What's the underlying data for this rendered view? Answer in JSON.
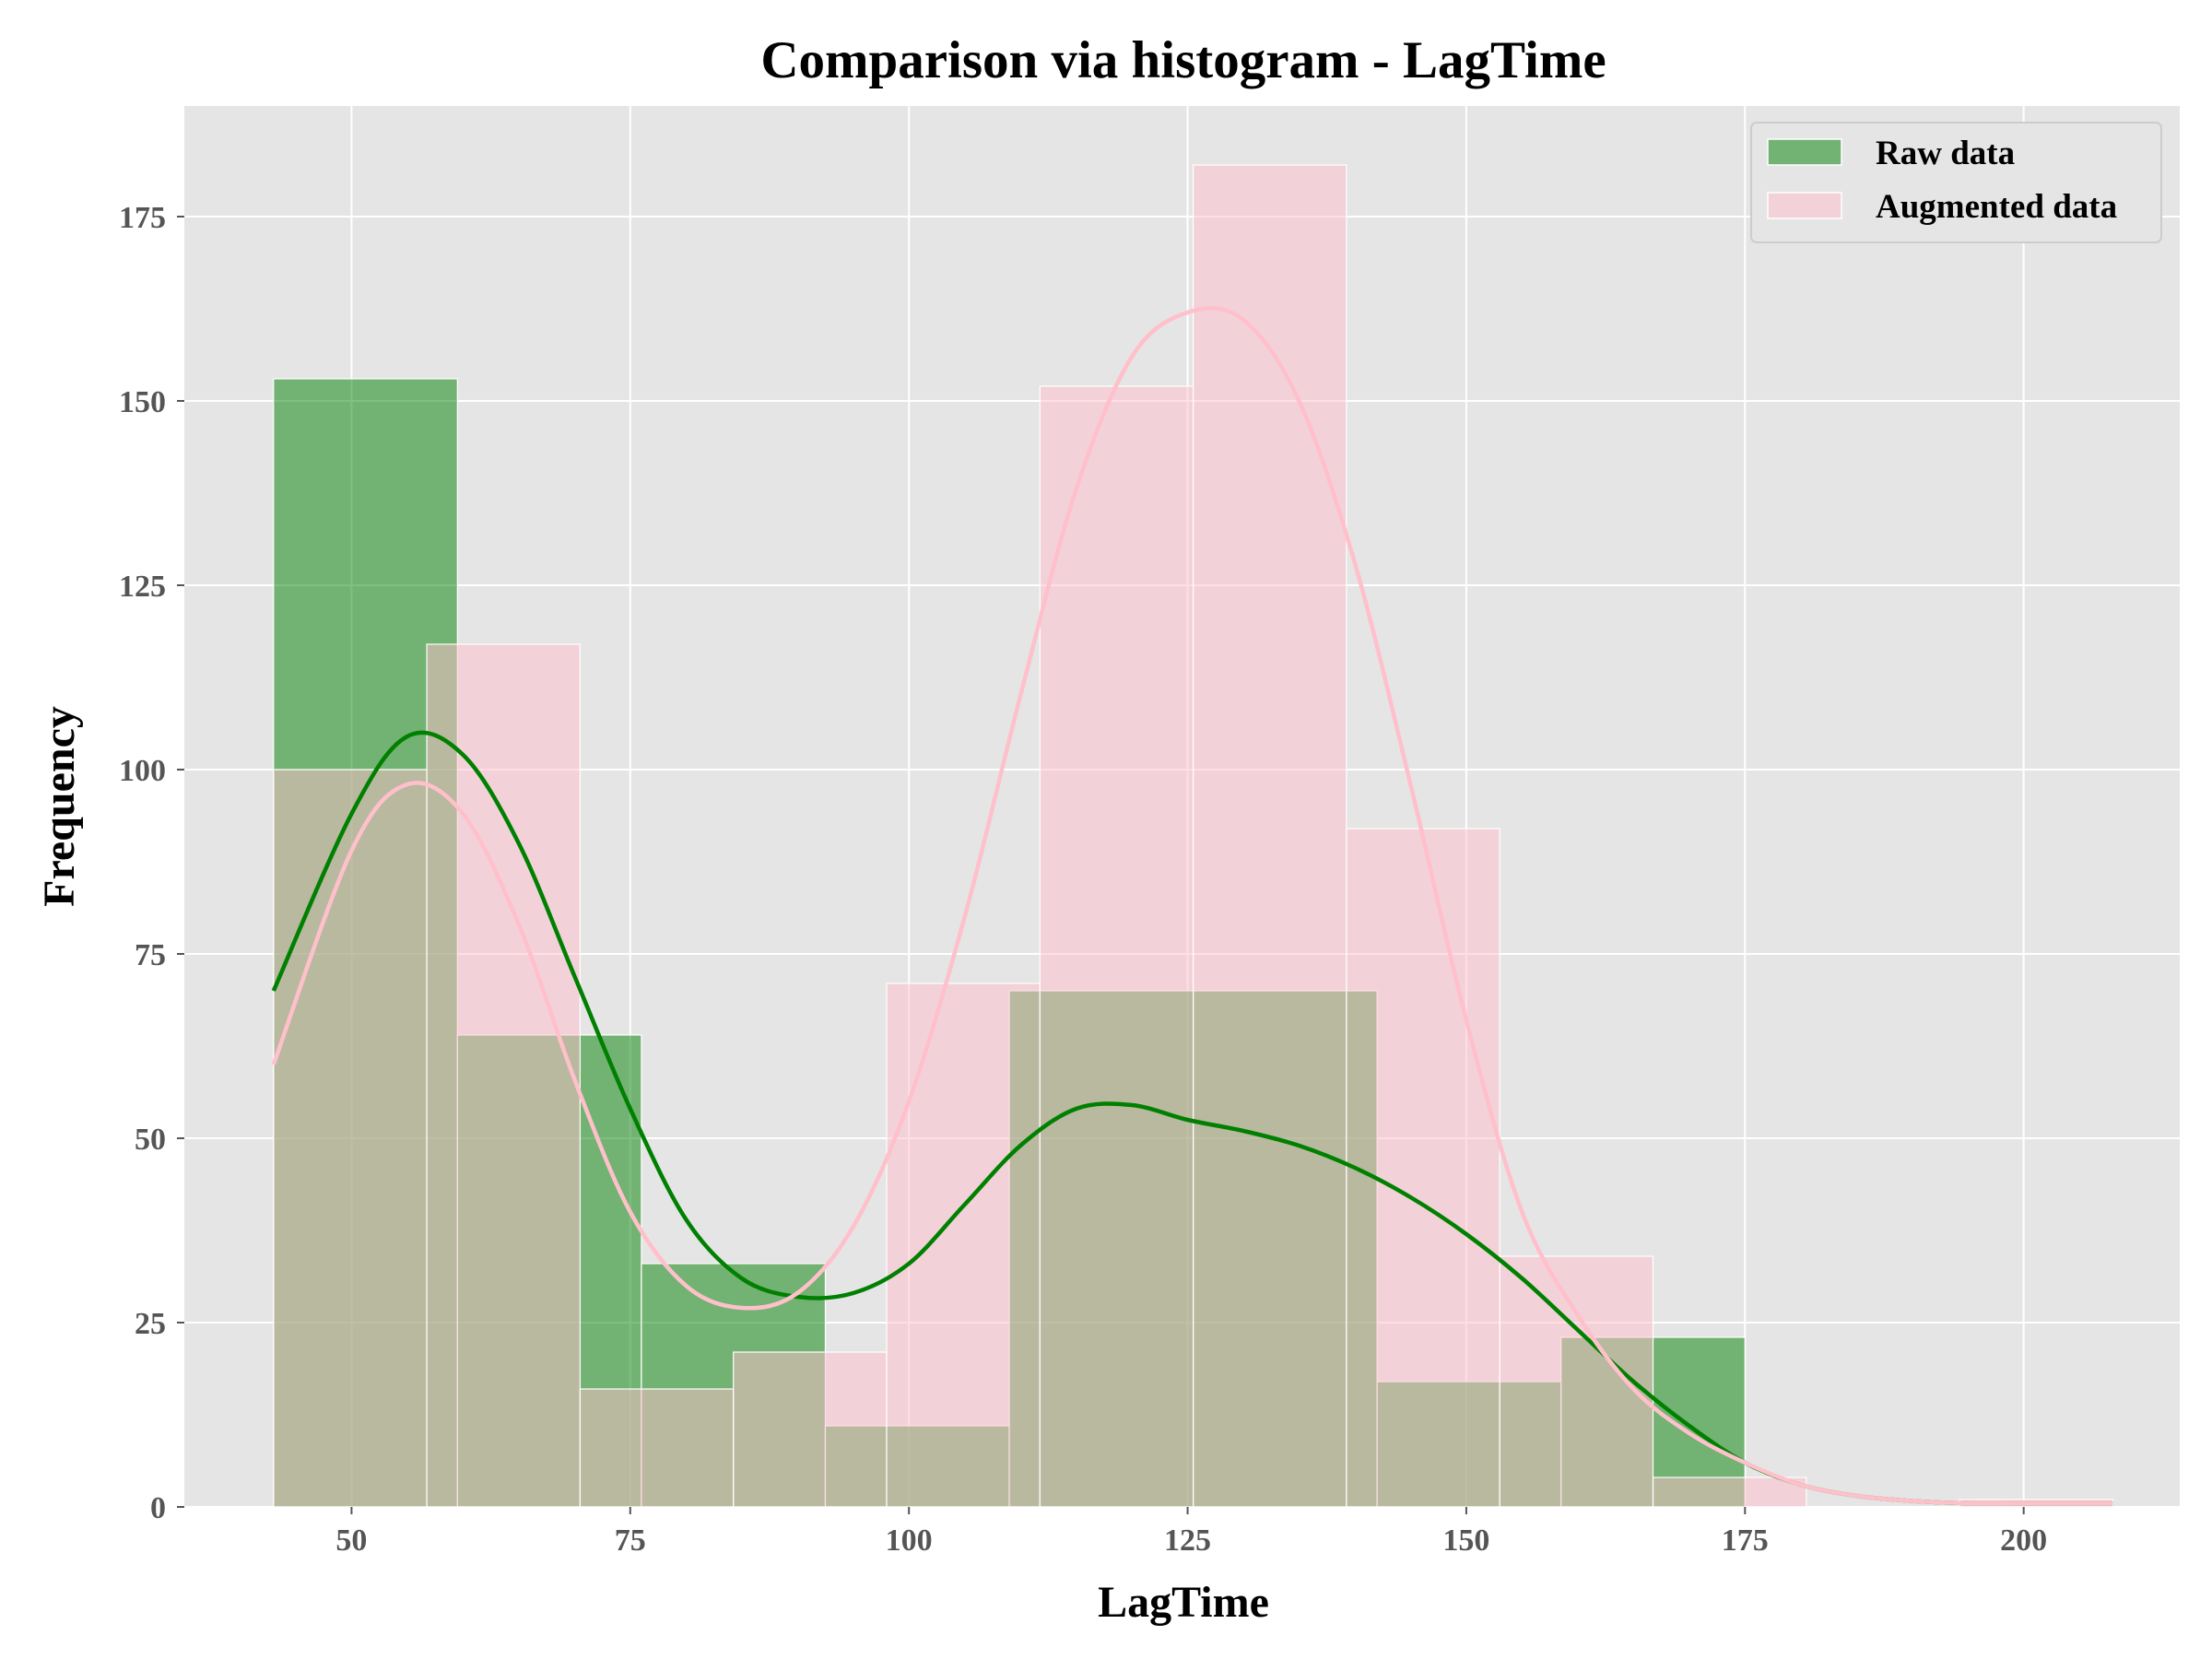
{
  "chart_data": {
    "type": "histogram",
    "title": "Comparison via histogram - LagTime",
    "xlabel": "LagTime",
    "ylabel": "Frequency",
    "xlim": [
      35,
      214
    ],
    "ylim": [
      0,
      190
    ],
    "xticks": [
      50,
      75,
      100,
      125,
      150,
      175,
      200
    ],
    "yticks": [
      0,
      25,
      50,
      75,
      100,
      125,
      150,
      175
    ],
    "grid": true,
    "legend_position": "upper right",
    "series": [
      {
        "name": "Raw data",
        "color": "#008000",
        "bins": [
          {
            "x0": 43.0,
            "x1": 59.5,
            "count": 153
          },
          {
            "x0": 59.5,
            "x1": 76.0,
            "count": 64
          },
          {
            "x0": 76.0,
            "x1": 92.5,
            "count": 33
          },
          {
            "x0": 92.5,
            "x1": 109.0,
            "count": 11
          },
          {
            "x0": 109.0,
            "x1": 125.5,
            "count": 70
          },
          {
            "x0": 125.5,
            "x1": 142.0,
            "count": 70
          },
          {
            "x0": 142.0,
            "x1": 158.5,
            "count": 17
          },
          {
            "x0": 158.5,
            "x1": 175.0,
            "count": 23
          }
        ],
        "kde": {
          "x": [
            43,
            50,
            55,
            60,
            65,
            70,
            75,
            80,
            85,
            90,
            95,
            100,
            105,
            110,
            115,
            120,
            125,
            130,
            135,
            140,
            145,
            150,
            155,
            160,
            165,
            170,
            175,
            180,
            185,
            190,
            195,
            200,
            205,
            208
          ],
          "y": [
            70,
            94,
            104.5,
            102,
            90,
            72,
            54,
            39,
            31,
            28.5,
            29,
            33,
            41,
            49,
            54,
            54.5,
            52.5,
            51,
            49,
            46,
            42,
            37,
            31,
            24,
            17,
            11,
            6,
            3,
            1.5,
            0.8,
            0.5,
            0.5,
            0.5,
            0.5
          ]
        }
      },
      {
        "name": "Augmented data",
        "color": "#ffc0cb",
        "bins": [
          {
            "x0": 43.0,
            "x1": 56.75,
            "count": 100
          },
          {
            "x0": 56.75,
            "x1": 70.5,
            "count": 117
          },
          {
            "x0": 70.5,
            "x1": 84.25,
            "count": 16
          },
          {
            "x0": 84.25,
            "x1": 98.0,
            "count": 21
          },
          {
            "x0": 98.0,
            "x1": 111.75,
            "count": 71
          },
          {
            "x0": 111.75,
            "x1": 125.5,
            "count": 152
          },
          {
            "x0": 125.5,
            "x1": 139.25,
            "count": 182
          },
          {
            "x0": 139.25,
            "x1": 153.0,
            "count": 92
          },
          {
            "x0": 153.0,
            "x1": 166.75,
            "count": 34
          },
          {
            "x0": 166.75,
            "x1": 180.5,
            "count": 4
          },
          {
            "x0": 180.5,
            "x1": 194.25,
            "count": 0
          },
          {
            "x0": 194.25,
            "x1": 208.0,
            "count": 1
          }
        ],
        "kde": {
          "x": [
            43,
            50,
            55,
            60,
            65,
            70,
            75,
            80,
            85,
            90,
            95,
            100,
            105,
            110,
            115,
            120,
            125,
            130,
            135,
            140,
            145,
            150,
            155,
            160,
            165,
            170,
            175,
            180,
            185,
            190,
            195,
            200,
            205,
            208
          ],
          "y": [
            60,
            89,
            98,
            94,
            79,
            58,
            40,
            30,
            27,
            29,
            38,
            55,
            80,
            110,
            138,
            156,
            162,
            161,
            150,
            128,
            98,
            66,
            40,
            26,
            16,
            10,
            6,
            3,
            1.5,
            0.8,
            0.5,
            0.5,
            0.5,
            0.5
          ]
        }
      }
    ]
  }
}
